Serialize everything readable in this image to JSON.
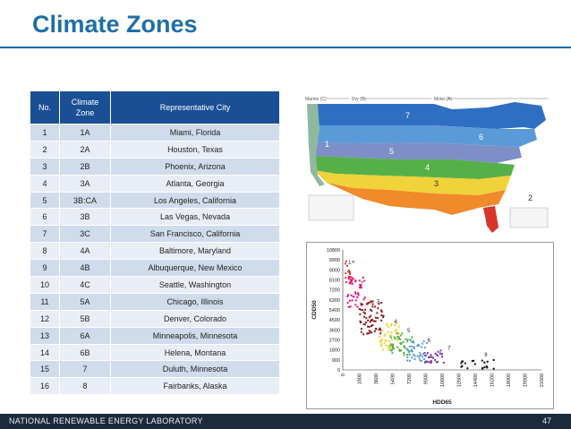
{
  "slide": {
    "title": "Climate Zones",
    "footer": "NATIONAL RENEWABLE ENERGY LABORATORY",
    "page_number": "47"
  },
  "table": {
    "headers": [
      "No.",
      "Climate Zone",
      "Representative City"
    ],
    "rows": [
      [
        "1",
        "1A",
        "Miami, Florida"
      ],
      [
        "2",
        "2A",
        "Houston, Texas"
      ],
      [
        "3",
        "2B",
        "Phoenix, Arizona"
      ],
      [
        "4",
        "3A",
        "Atlanta, Georgia"
      ],
      [
        "5",
        "3B:CA",
        "Los Angeles, California"
      ],
      [
        "6",
        "3B",
        "Las Vegas, Nevada"
      ],
      [
        "7",
        "3C",
        "San Francisco, California"
      ],
      [
        "8",
        "4A",
        "Baltimore, Maryland"
      ],
      [
        "9",
        "4B",
        "Albuquerque, New Mexico"
      ],
      [
        "10",
        "4C",
        "Seattle, Washington"
      ],
      [
        "11",
        "5A",
        "Chicago, Illinois"
      ],
      [
        "12",
        "5B",
        "Denver, Colorado"
      ],
      [
        "13",
        "6A",
        "Minneapolis, Minnesota"
      ],
      [
        "14",
        "6B",
        "Helena, Montana"
      ],
      [
        "15",
        "7",
        "Duluth, Minnesota"
      ],
      [
        "16",
        "8",
        "Fairbanks, Alaska"
      ]
    ]
  },
  "map": {
    "moisture_labels": [
      "Marine (C)",
      "Dry (B)",
      "Moist (A)"
    ],
    "zone_numbers": [
      "1",
      "2",
      "3",
      "4",
      "5",
      "6",
      "7"
    ]
  },
  "chart_data": {
    "type": "scatter",
    "xlabel": "HDD65",
    "ylabel": "CDD50",
    "x_ticks": [
      0,
      1800,
      3600,
      5400,
      7200,
      9000,
      10800,
      12600,
      14400,
      16200,
      18000,
      19800,
      21600
    ],
    "y_ticks": [
      0,
      900,
      1800,
      2700,
      3600,
      4500,
      5400,
      6300,
      7200,
      8100,
      9000,
      9900,
      10800
    ],
    "xlim": [
      0,
      21600
    ],
    "ylim": [
      0,
      10800
    ],
    "zone_labels": [
      "1",
      "2",
      "3",
      "4",
      "5",
      "6",
      "7",
      "8"
    ]
  },
  "colors": {
    "title": "#1f6fa6",
    "header_bg": "#1a4f95",
    "row_odd": "#d0dcec",
    "row_even": "#e9eef6",
    "footer_bg": "#1b2b3d"
  }
}
